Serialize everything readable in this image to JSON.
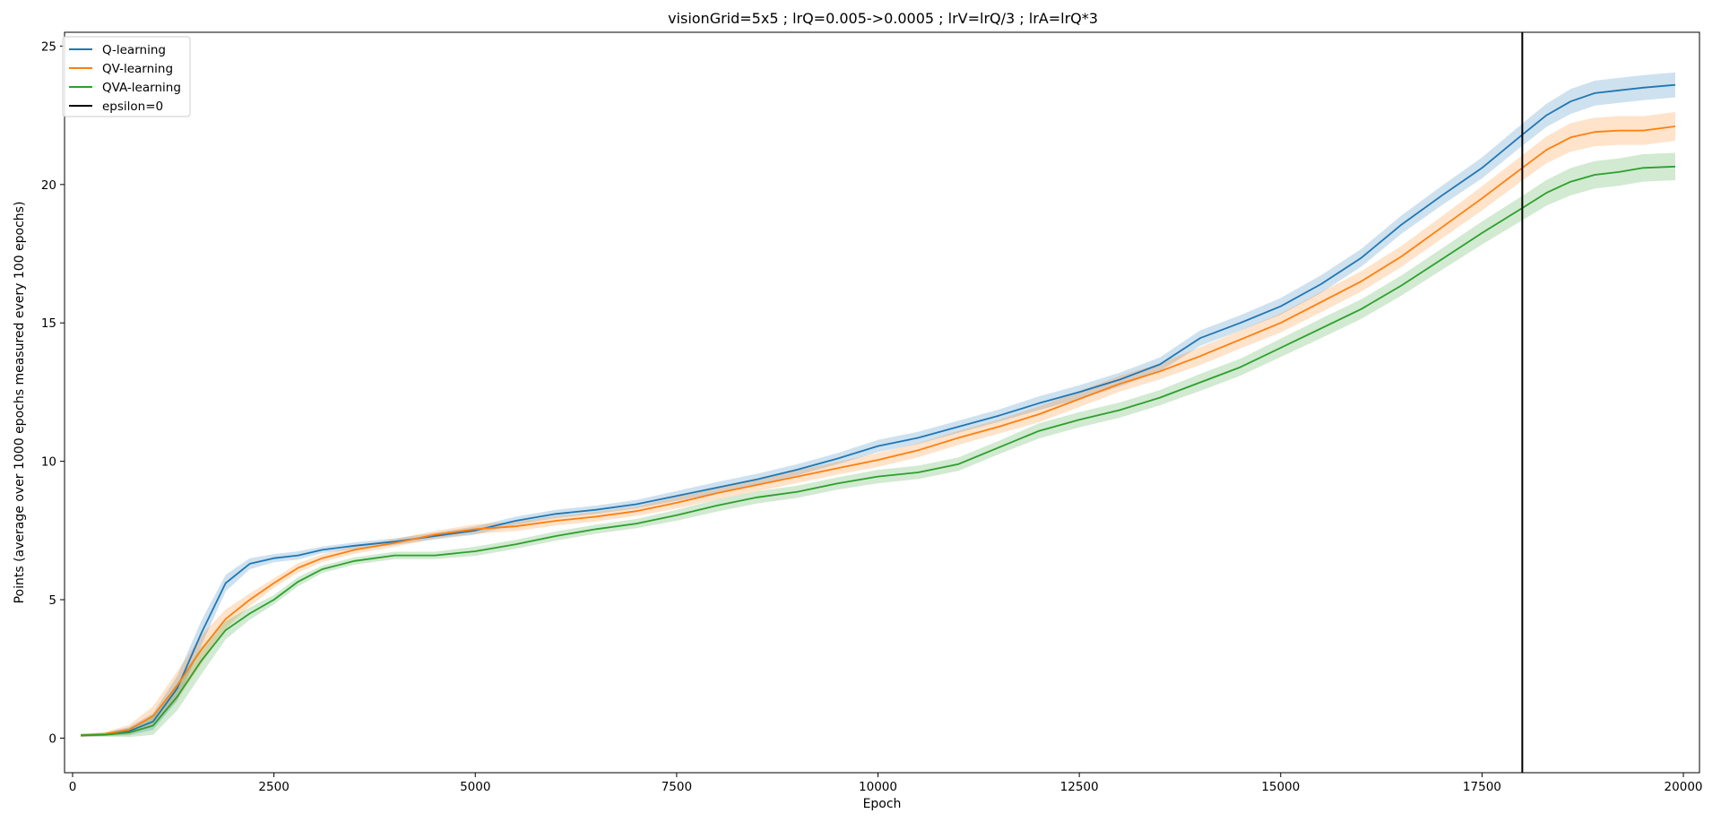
{
  "chart_data": {
    "type": "line",
    "title": "visionGrid=5x5 ; lrQ=0.005->0.0005 ; lrV=lrQ/3 ; lrA=lrQ*3",
    "xlabel": "Epoch",
    "ylabel": "Points (average over 1000 epochs measured every 100 epochs)",
    "xlim": [
      -100,
      20200
    ],
    "ylim": [
      -1.25,
      25.5
    ],
    "xticks": [
      0,
      2500,
      5000,
      7500,
      10000,
      12500,
      15000,
      17500,
      20000
    ],
    "yticks": [
      0,
      5,
      10,
      15,
      20,
      25
    ],
    "grid": false,
    "legend_position": "top-left",
    "vline": {
      "x": 18000,
      "label": "epsilon=0",
      "color": "#000000"
    },
    "x": [
      100,
      400,
      700,
      1000,
      1300,
      1600,
      1900,
      2200,
      2500,
      2800,
      3100,
      3500,
      4000,
      4500,
      5000,
      5500,
      6000,
      6500,
      7000,
      7500,
      8000,
      8500,
      9000,
      9500,
      10000,
      10500,
      11000,
      11500,
      12000,
      12500,
      13000,
      13500,
      14000,
      14500,
      15000,
      15500,
      16000,
      16500,
      17000,
      17500,
      18000,
      18300,
      18600,
      18900,
      19200,
      19500,
      19900
    ],
    "series": [
      {
        "name": "Q-learning",
        "color": "#1f77b4",
        "values": [
          0.1,
          0.13,
          0.25,
          0.6,
          1.8,
          3.8,
          5.6,
          6.3,
          6.5,
          6.6,
          6.8,
          6.95,
          7.1,
          7.3,
          7.5,
          7.85,
          8.1,
          8.25,
          8.45,
          8.75,
          9.05,
          9.35,
          9.7,
          10.1,
          10.55,
          10.85,
          11.25,
          11.65,
          12.1,
          12.5,
          12.95,
          13.5,
          14.45,
          15.0,
          15.6,
          16.4,
          17.35,
          18.55,
          19.6,
          20.6,
          21.8,
          22.5,
          23.0,
          23.3,
          23.4,
          23.5,
          23.6
        ],
        "band": [
          0.05,
          0.06,
          0.15,
          0.3,
          0.45,
          0.45,
          0.3,
          0.2,
          0.15,
          0.15,
          0.12,
          0.12,
          0.12,
          0.12,
          0.15,
          0.15,
          0.15,
          0.15,
          0.15,
          0.18,
          0.2,
          0.2,
          0.2,
          0.2,
          0.22,
          0.22,
          0.22,
          0.22,
          0.25,
          0.25,
          0.25,
          0.25,
          0.28,
          0.28,
          0.3,
          0.32,
          0.32,
          0.33,
          0.35,
          0.38,
          0.4,
          0.42,
          0.45,
          0.45,
          0.45,
          0.45,
          0.45
        ]
      },
      {
        "name": "QV-learning",
        "color": "#ff7f0e",
        "values": [
          0.1,
          0.15,
          0.3,
          0.8,
          1.9,
          3.2,
          4.3,
          5.0,
          5.6,
          6.15,
          6.5,
          6.8,
          7.05,
          7.35,
          7.55,
          7.65,
          7.85,
          8.0,
          8.2,
          8.5,
          8.85,
          9.15,
          9.45,
          9.75,
          10.05,
          10.4,
          10.85,
          11.25,
          11.7,
          12.25,
          12.8,
          13.25,
          13.8,
          14.4,
          15.0,
          15.75,
          16.5,
          17.4,
          18.45,
          19.5,
          20.6,
          21.25,
          21.7,
          21.9,
          21.95,
          21.95,
          22.1
        ]
      },
      {
        "name": "QVA-learning",
        "color": "#2ca02c",
        "values": [
          0.1,
          0.12,
          0.2,
          0.45,
          1.5,
          2.8,
          3.9,
          4.5,
          5.0,
          5.65,
          6.1,
          6.4,
          6.6,
          6.6,
          6.75,
          7.0,
          7.3,
          7.55,
          7.75,
          8.05,
          8.4,
          8.7,
          8.9,
          9.2,
          9.45,
          9.6,
          9.9,
          10.5,
          11.1,
          11.5,
          11.85,
          12.3,
          12.85,
          13.4,
          14.1,
          14.8,
          15.5,
          16.35,
          17.3,
          18.25,
          19.15,
          19.7,
          20.1,
          20.35,
          20.45,
          20.6,
          20.65
        ]
      }
    ]
  }
}
